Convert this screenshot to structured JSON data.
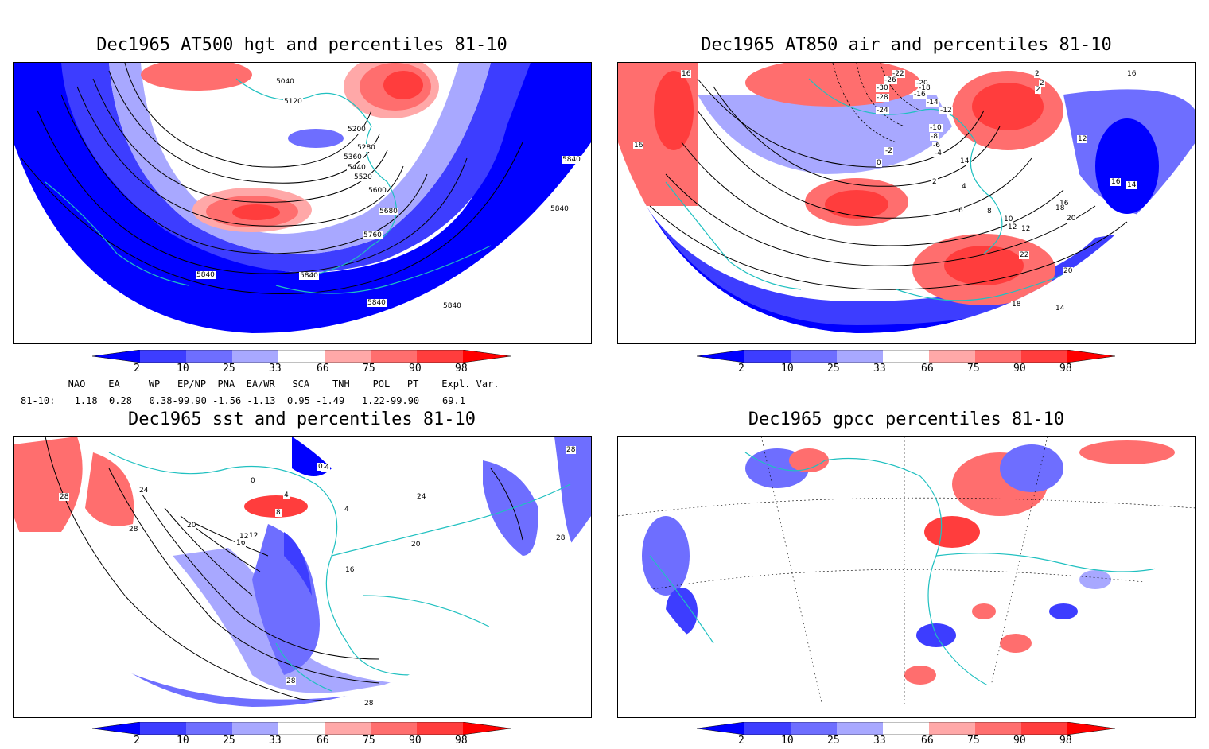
{
  "panels": [
    {
      "id": "p1",
      "title": "Dec1965 AT500 hgt and percentiles 81-10",
      "contour_labels": [
        "5040",
        "5120",
        "5200",
        "5280",
        "5360",
        "5440",
        "5520",
        "5600",
        "5680",
        "5760",
        "5840",
        "5840",
        "5840",
        "5840",
        "5840",
        "5840"
      ]
    },
    {
      "id": "p2",
      "title": "Dec1965 AT850 air and percentiles 81-10",
      "contour_labels": [
        "16",
        "16",
        "-22",
        "-26",
        "-20",
        "-30",
        "-18",
        "-16",
        "-28",
        "-14",
        "-24",
        "-12",
        "-10",
        "-8",
        "-6",
        "-4",
        "-2",
        "0",
        "2",
        "4",
        "6",
        "8",
        "10",
        "12",
        "12",
        "12",
        "14",
        "14",
        "14",
        "16",
        "16",
        "18",
        "18",
        "20",
        "20",
        "22",
        "2",
        "2",
        "2",
        "16"
      ]
    },
    {
      "id": "p3",
      "title": "Dec1965 sst and percentiles 81-10",
      "contour_labels": [
        "28",
        "28",
        "24",
        "20",
        "16",
        "12",
        "8",
        "4",
        "0",
        "-4",
        "0",
        "4",
        "12",
        "16",
        "20",
        "24",
        "28",
        "28",
        "28",
        "28"
      ]
    },
    {
      "id": "p4",
      "title": "Dec1965 gpcc percentiles 81-10",
      "contour_labels": []
    }
  ],
  "colorbar": {
    "ticks": [
      "2",
      "10",
      "25",
      "33",
      "66",
      "75",
      "90",
      "98"
    ],
    "colors": [
      "#0000ff",
      "#3d3dff",
      "#6e6eff",
      "#a8a8ff",
      "#ffffff",
      "#ffa8a8",
      "#ff6e6e",
      "#ff3d3d",
      "#ff0000"
    ]
  },
  "indices": {
    "header": "   NAO    EA     WP   EP/NP  PNA  EA/WR   SCA    TNH    POL   PT    Expl. Var.",
    "row_label": "81-10:",
    "values": "   1.18  0.28   0.38-99.90 -1.56 -1.13  0.95 -1.49   1.22-99.90    69.1"
  }
}
